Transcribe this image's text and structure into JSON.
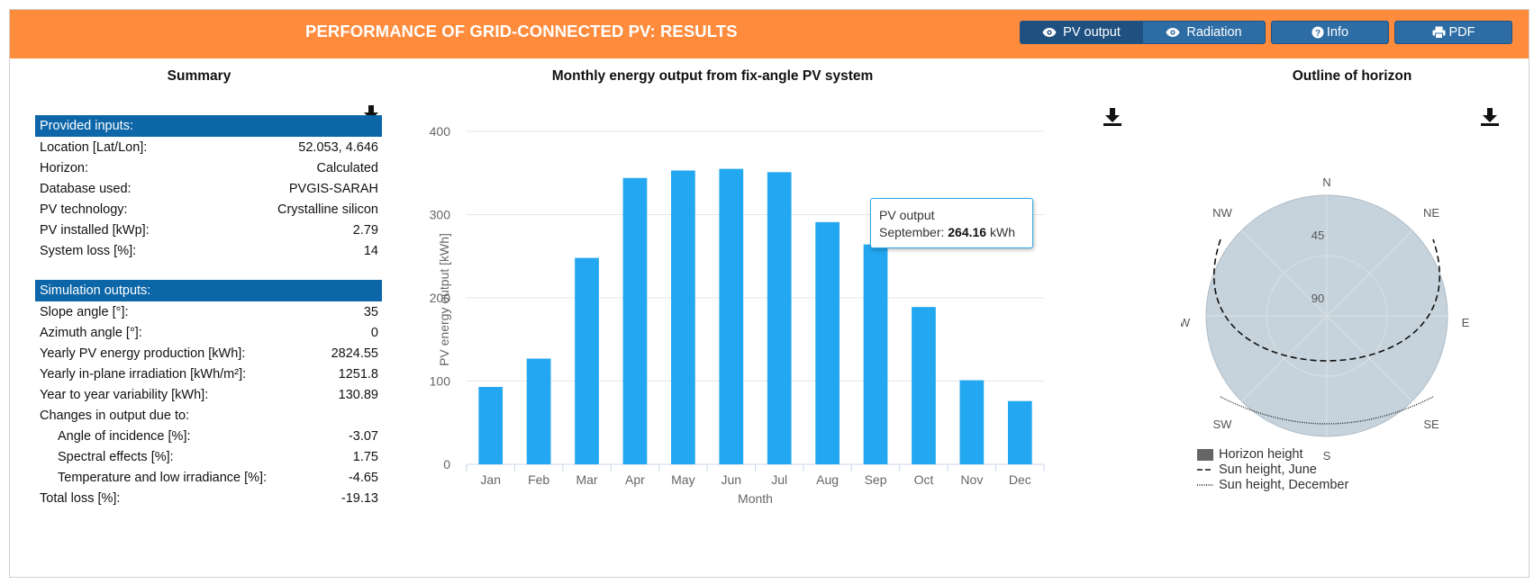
{
  "header": {
    "title": "PERFORMANCE OF GRID-CONNECTED PV: RESULTS",
    "buttons": {
      "pv_output": "PV output",
      "radiation": "Radiation",
      "info": "Info",
      "pdf": "PDF"
    },
    "accent_color": "#ff8c3d",
    "button_color": "#2e6da4"
  },
  "summary": {
    "title": "Summary",
    "inputs_heading": "Provided inputs:",
    "inputs": [
      {
        "label": "Location [Lat/Lon]:",
        "value": "52.053, 4.646"
      },
      {
        "label": "Horizon:",
        "value": "Calculated"
      },
      {
        "label": "Database used:",
        "value": "PVGIS-SARAH"
      },
      {
        "label": "PV technology:",
        "value": "Crystalline silicon"
      },
      {
        "label": "PV installed [kWp]:",
        "value": "2.79"
      },
      {
        "label": "System loss [%]:",
        "value": "14"
      }
    ],
    "outputs_heading": "Simulation outputs:",
    "outputs": [
      {
        "label": "Slope angle [°]:",
        "value": "35"
      },
      {
        "label": "Azimuth angle [°]:",
        "value": "0"
      },
      {
        "label": "Yearly PV energy production [kWh]:",
        "value": "2824.55"
      },
      {
        "label": "Yearly in-plane irradiation [kWh/m²]:",
        "value": "1251.8"
      },
      {
        "label": "Year to year variability [kWh]:",
        "value": "130.89"
      },
      {
        "label": "Changes in output due to:",
        "value": ""
      },
      {
        "label": "Angle of incidence [%]:",
        "value": "-3.07"
      },
      {
        "label": "Spectral effects [%]:",
        "value": "1.75"
      },
      {
        "label": "Temperature and low irradiance [%]:",
        "value": "-4.65"
      },
      {
        "label": "Total loss [%]:",
        "value": "-19.13"
      }
    ]
  },
  "chart_panel": {
    "title": "Monthly energy output from fix-angle PV system"
  },
  "chart_data": {
    "type": "bar",
    "title": "Monthly energy output from fix-angle PV system",
    "xlabel": "Month",
    "ylabel": "PV energy output [kWh]",
    "ylim": [
      0,
      400
    ],
    "yticks": [
      0,
      100,
      200,
      300,
      400
    ],
    "grid": true,
    "bar_color": "#22a7f0",
    "categories": [
      "Jan",
      "Feb",
      "Mar",
      "Apr",
      "May",
      "Jun",
      "Jul",
      "Aug",
      "Sep",
      "Oct",
      "Nov",
      "Dec"
    ],
    "series": [
      {
        "name": "PV output",
        "values": [
          93,
          127,
          248,
          344,
          353,
          355,
          351,
          291,
          264.16,
          189,
          101,
          76
        ]
      }
    ]
  },
  "tooltip": {
    "series": "PV output",
    "month": "September:",
    "value": "264.16",
    "unit": "kWh"
  },
  "horizon": {
    "title": "Outline of horizon",
    "compass": {
      "N": "N",
      "NE": "NE",
      "E": "E",
      "SE": "SE",
      "S": "S",
      "SW": "SW",
      "W": "W",
      "NW": "NW"
    },
    "ring_labels": [
      "45",
      "90"
    ],
    "legend": [
      {
        "label": "Horizon height",
        "style": "solid-box"
      },
      {
        "label": "Sun height, June",
        "style": "dashed"
      },
      {
        "label": "Sun height, December",
        "style": "dotted"
      }
    ],
    "fill_color": "#c7d3dc"
  }
}
